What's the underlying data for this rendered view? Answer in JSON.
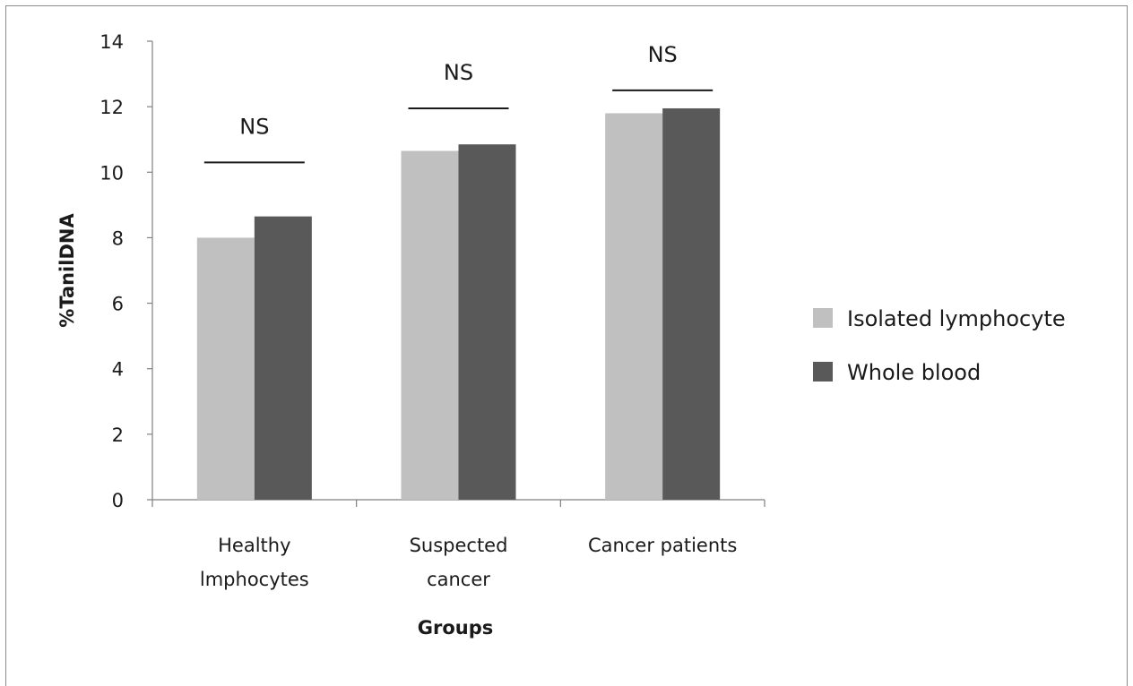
{
  "chart_data": {
    "type": "bar",
    "xlabel": "Groups",
    "ylabel": "%TanilDNA",
    "ylim": [
      0,
      14
    ],
    "yticks": [
      0,
      2,
      4,
      6,
      8,
      10,
      12,
      14
    ],
    "grid": false,
    "legend_placement": "right",
    "categories": [
      [
        "Healthy",
        "lmphocytes"
      ],
      [
        "Suspected",
        "cancer"
      ],
      [
        "Cancer patients"
      ]
    ],
    "series": [
      {
        "name": "Isolated lymphocyte",
        "color": "#c0c0c0",
        "values": [
          8.0,
          10.65,
          11.8
        ]
      },
      {
        "name": "Whole blood",
        "color": "#595959",
        "values": [
          8.65,
          10.85,
          11.95
        ]
      }
    ],
    "annotations": [
      {
        "text": "NS",
        "category": 0,
        "y": 10.3
      },
      {
        "text": "NS",
        "category": 1,
        "y": 11.95
      },
      {
        "text": "NS",
        "category": 2,
        "y": 12.5
      }
    ]
  }
}
